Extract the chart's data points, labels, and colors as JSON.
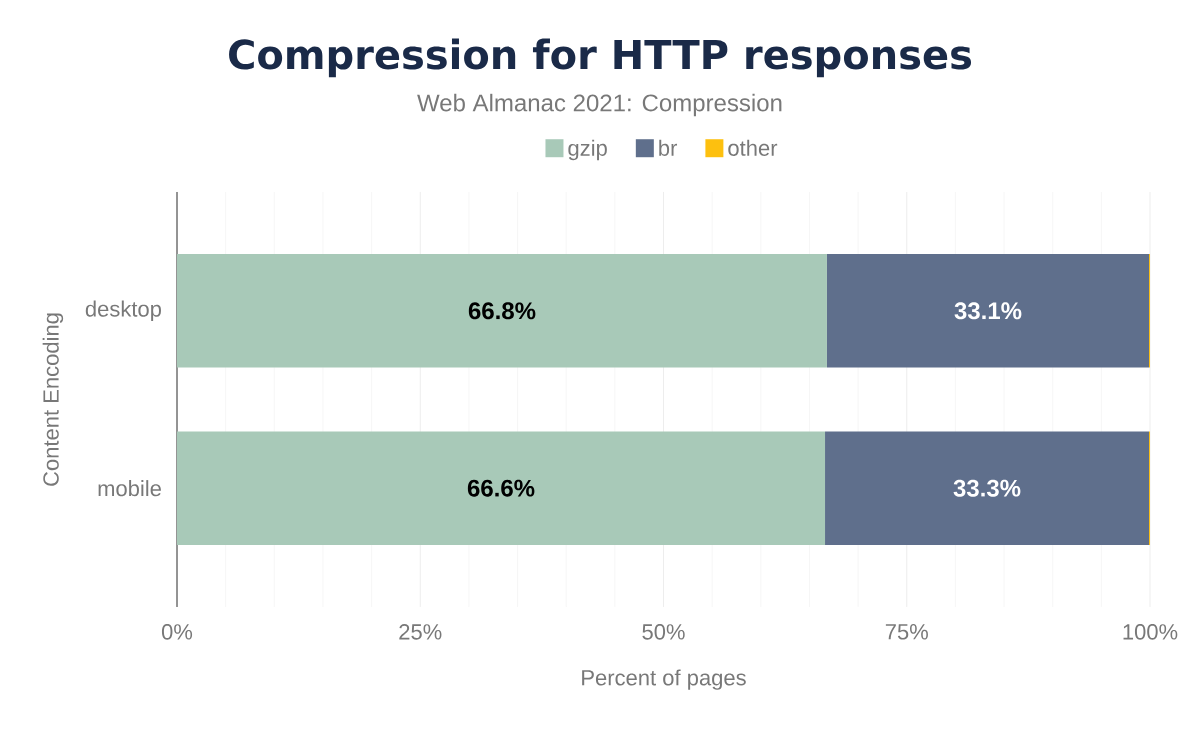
{
  "chart_data": {
    "type": "bar",
    "orientation": "horizontal",
    "stacked": true,
    "title": "Compression for HTTP responses",
    "subtitle": "Web Almanac 2021: Compression",
    "xlabel": "Percent of pages",
    "ylabel": "Content Encoding",
    "categories": [
      "desktop",
      "mobile"
    ],
    "series": [
      {
        "name": "gzip",
        "color": "#a8c9b8",
        "values": [
          66.8,
          66.6
        ],
        "value_labels": [
          "66.8%",
          "66.6%"
        ]
      },
      {
        "name": "br",
        "color": "#5f6f8c",
        "values": [
          33.1,
          33.3
        ],
        "value_labels": [
          "33.1%",
          "33.3%"
        ]
      },
      {
        "name": "other",
        "color": "#fdc00f",
        "values": [
          0.1,
          0.1
        ],
        "value_labels": [
          null,
          null
        ]
      }
    ],
    "xlim": [
      0,
      100
    ],
    "xticks": [
      {
        "value": 0,
        "label": "0%"
      },
      {
        "value": 25,
        "label": "25%"
      },
      {
        "value": 50,
        "label": "50%"
      },
      {
        "value": 75,
        "label": "75%"
      },
      {
        "value": 100,
        "label": "100%"
      }
    ],
    "grid": "x",
    "legend": "top"
  }
}
